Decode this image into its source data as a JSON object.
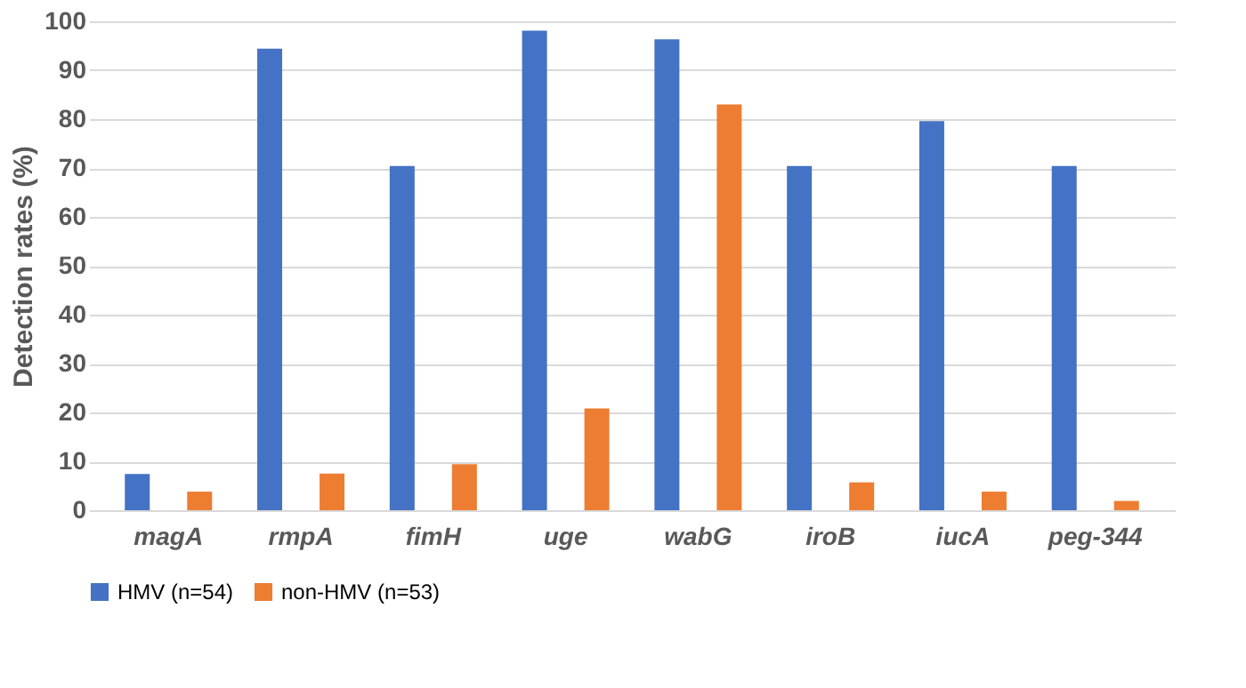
{
  "chart_data": {
    "type": "bar",
    "ylabel": "Detection rates (%)",
    "categories": [
      "magA",
      "rmpA",
      "fimH",
      "uge",
      "wabG",
      "iroB",
      "iucA",
      "peg-344"
    ],
    "series": [
      {
        "name": "HMV (n=54)",
        "color": "#4472c4",
        "values": [
          7.4,
          94.4,
          70.4,
          98.1,
          96.3,
          70.4,
          79.6,
          70.4
        ]
      },
      {
        "name": "non-HMV (n=53)",
        "color": "#ed7d31",
        "values": [
          3.8,
          7.5,
          9.4,
          20.8,
          83.0,
          5.7,
          3.8,
          1.9
        ]
      }
    ],
    "ylim": [
      0,
      100
    ],
    "yticks": [
      0,
      10,
      20,
      30,
      40,
      50,
      60,
      70,
      80,
      90,
      100
    ],
    "grid": "y",
    "legend": "bottom"
  }
}
